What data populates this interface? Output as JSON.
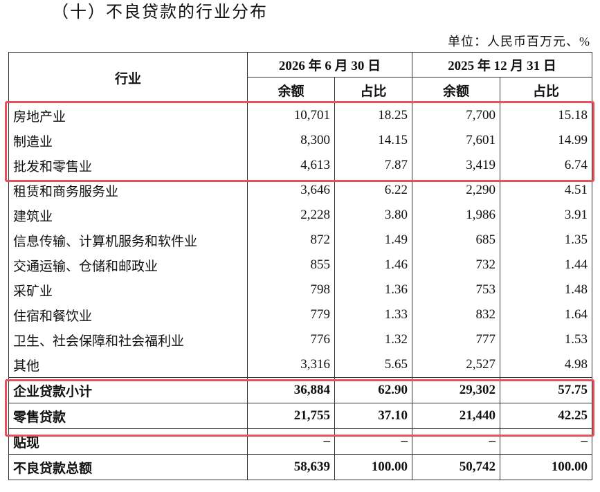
{
  "header": {
    "title": "（十）不良贷款的行业分布",
    "unit": "单位：人民币百万元、%"
  },
  "table": {
    "industry_header": "行业",
    "periods": [
      "2026 年 6 月 30 日",
      "2025 年 12 月 31 日"
    ],
    "columns": [
      "余额",
      "占比",
      "余额",
      "占比"
    ],
    "rows": [
      [
        "房地产业",
        "10,701",
        "18.25",
        "7,700",
        "15.18"
      ],
      [
        "制造业",
        "8,300",
        "14.15",
        "7,601",
        "14.99"
      ],
      [
        "批发和零售业",
        "4,613",
        "7.87",
        "3,419",
        "6.74"
      ],
      [
        "租赁和商务服务业",
        "3,646",
        "6.22",
        "2,290",
        "4.51"
      ],
      [
        "建筑业",
        "2,228",
        "3.80",
        "1,986",
        "3.91"
      ],
      [
        "信息传输、计算机服务和软件业",
        "872",
        "1.49",
        "685",
        "1.35"
      ],
      [
        "交通运输、仓储和邮政业",
        "855",
        "1.46",
        "732",
        "1.44"
      ],
      [
        "采矿业",
        "798",
        "1.36",
        "753",
        "1.48"
      ],
      [
        "住宿和餐饮业",
        "779",
        "1.33",
        "832",
        "1.64"
      ],
      [
        "卫生、社会保障和社会福利业",
        "776",
        "1.32",
        "777",
        "1.53"
      ],
      [
        "其他",
        "3,316",
        "5.65",
        "2,527",
        "4.98"
      ],
      [
        "企业贷款小计",
        "36,884",
        "62.90",
        "29,302",
        "57.75"
      ],
      [
        "零售贷款",
        "21,755",
        "37.10",
        "21,440",
        "42.25"
      ],
      [
        "贴现",
        "–",
        "–",
        "–",
        "–"
      ],
      [
        "不良贷款总额",
        "58,639",
        "100.00",
        "50,742",
        "100.00"
      ]
    ]
  }
}
